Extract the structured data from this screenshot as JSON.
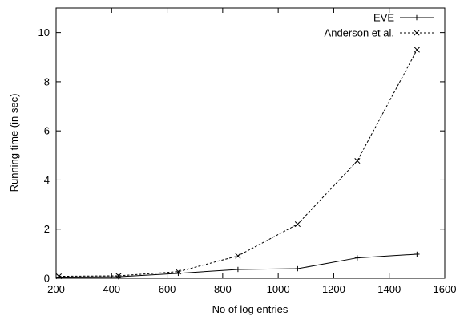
{
  "chart_data": {
    "type": "line",
    "title": "",
    "xlabel": "No of log entries",
    "ylabel": "Running time (in sec)",
    "xlim": [
      200,
      1600
    ],
    "ylim": [
      0,
      11
    ],
    "x_ticks": [
      200,
      400,
      600,
      800,
      1000,
      1200,
      1400,
      1600
    ],
    "y_ticks": [
      0,
      2,
      4,
      6,
      8,
      10
    ],
    "grid": false,
    "legend_position": "top-right",
    "x": [
      210,
      425,
      640,
      855,
      1070,
      1285,
      1500
    ],
    "series": [
      {
        "name": "EVE",
        "marker": "plus",
        "line_style": "solid",
        "color": "#000000",
        "values": [
          0.05,
          0.06,
          0.2,
          0.36,
          0.39,
          0.83,
          0.98
        ]
      },
      {
        "name": "Anderson et al.",
        "marker": "x",
        "line_style": "dashed",
        "color": "#000000",
        "values": [
          0.08,
          0.1,
          0.27,
          0.91,
          2.2,
          4.78,
          9.3
        ]
      }
    ]
  }
}
